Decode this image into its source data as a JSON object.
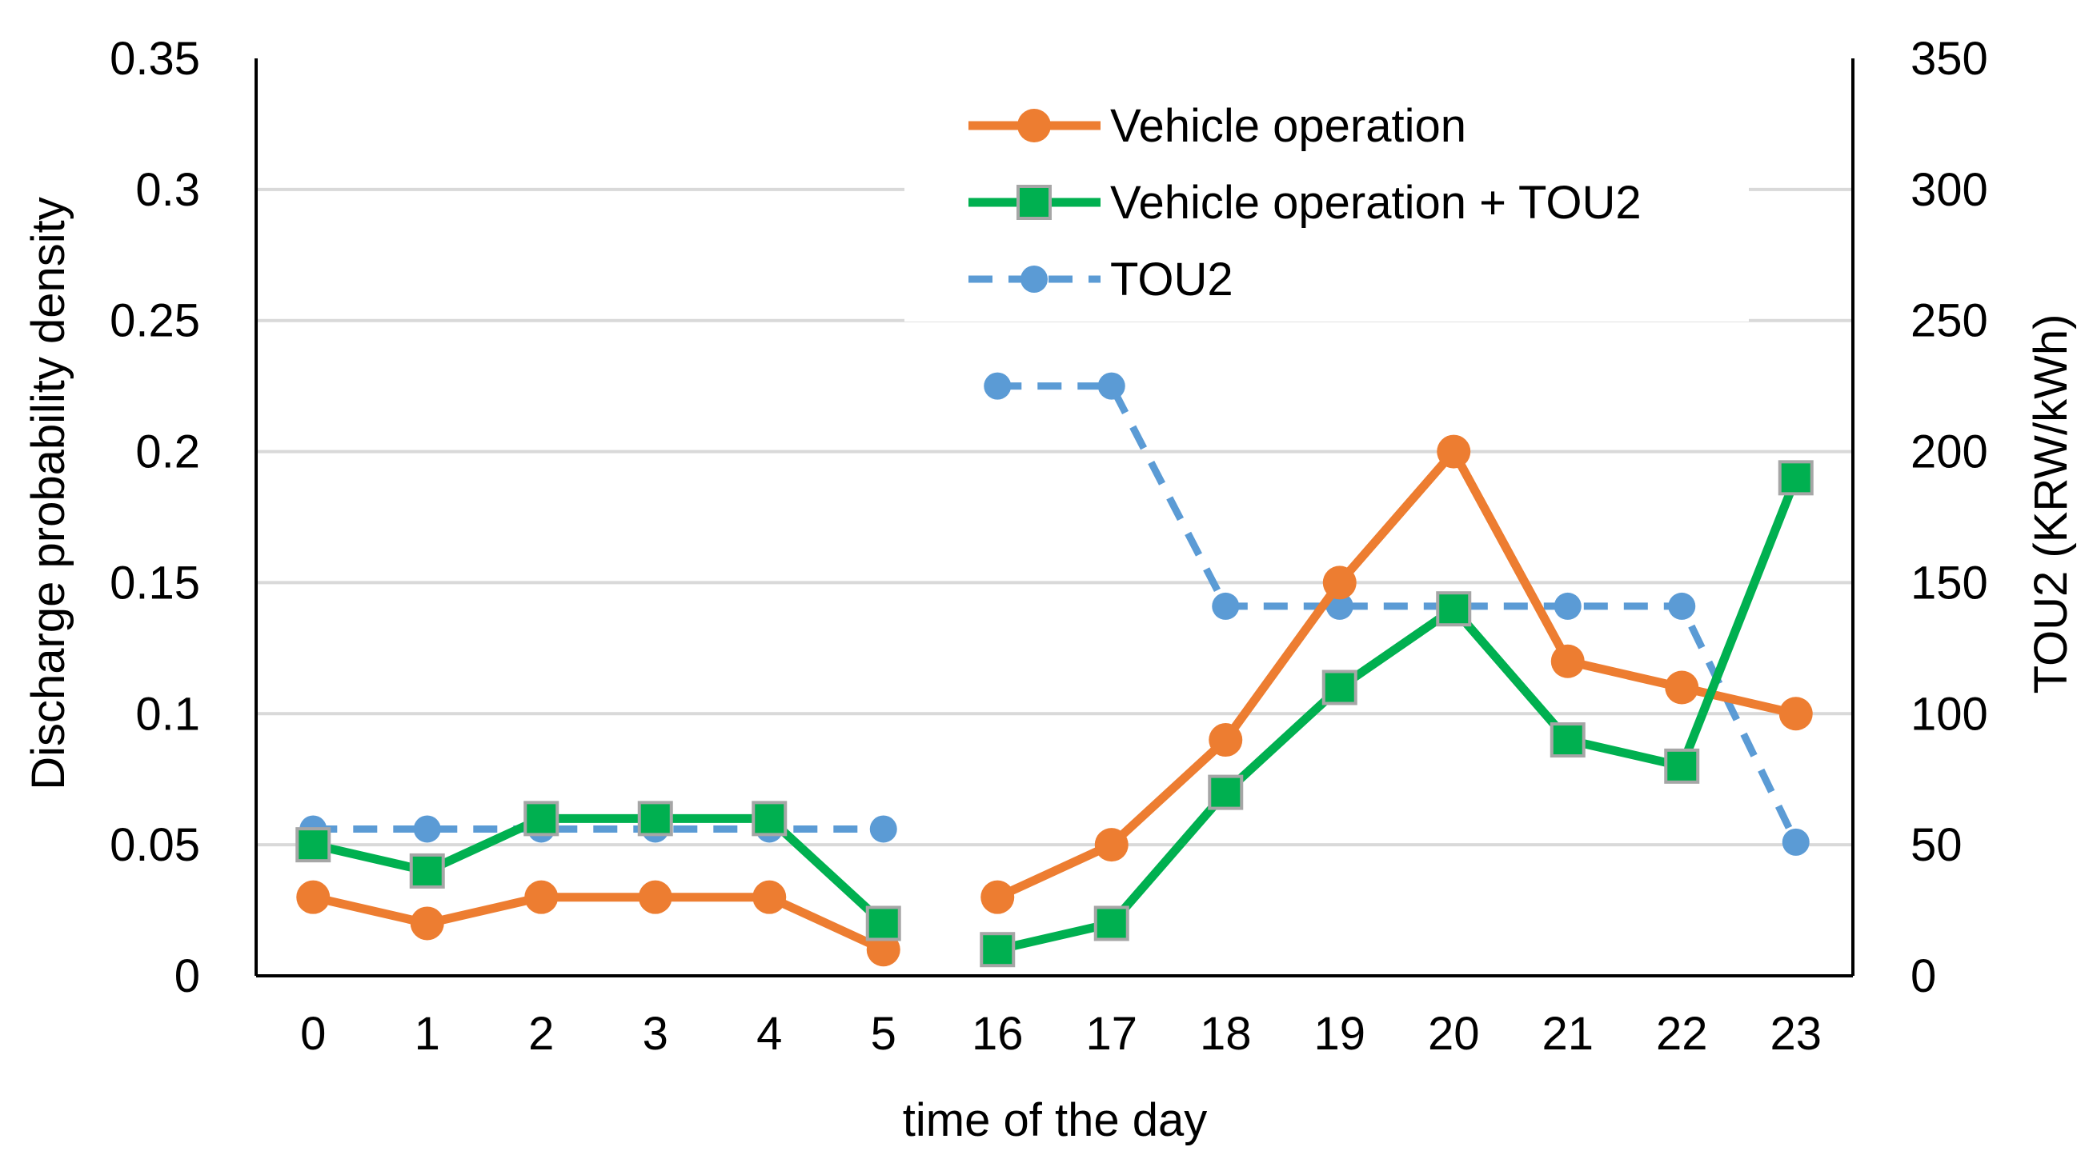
{
  "chart_data": {
    "type": "line",
    "categories": [
      "0",
      "1",
      "2",
      "3",
      "4",
      "5",
      "16",
      "17",
      "18",
      "19",
      "20",
      "21",
      "22",
      "23"
    ],
    "xlabel": "time of the day",
    "ylabel": "Discharge probability density",
    "y2label": "TOU2 (KRW/kWh)",
    "ylim": [
      0,
      0.35
    ],
    "y2lim": [
      0,
      350
    ],
    "yticks": [
      "0",
      "0.05",
      "0.1",
      "0.15",
      "0.2",
      "0.25",
      "0.3",
      "0.35"
    ],
    "y2ticks": [
      "0",
      "50",
      "100",
      "150",
      "200",
      "250",
      "300",
      "350"
    ],
    "grid": true,
    "legend_position": "top-center",
    "series": [
      {
        "name": "Vehicle operation",
        "axis": "left",
        "color": "#ED7D31",
        "marker": "circle",
        "segments": [
          [
            0.03,
            0.02,
            0.03,
            0.03,
            0.03,
            0.01
          ],
          [
            0.03,
            0.05,
            0.09,
            0.15,
            0.2,
            0.12,
            0.11,
            0.1
          ]
        ]
      },
      {
        "name": "Vehicle operation + TOU2",
        "axis": "left",
        "color": "#00B050",
        "marker": "square",
        "segments": [
          [
            0.05,
            0.04,
            0.06,
            0.06,
            0.06,
            0.02
          ],
          [
            0.01,
            0.02,
            0.07,
            0.11,
            0.14,
            0.09,
            0.08,
            0.19
          ]
        ]
      },
      {
        "name": "TOU2",
        "axis": "right",
        "color": "#5B9BD5",
        "marker": "circle",
        "dashed": true,
        "segments": [
          [
            56,
            56,
            56,
            56,
            56,
            56
          ],
          [
            225,
            225,
            141,
            141,
            141,
            141,
            141,
            51
          ]
        ]
      }
    ]
  }
}
